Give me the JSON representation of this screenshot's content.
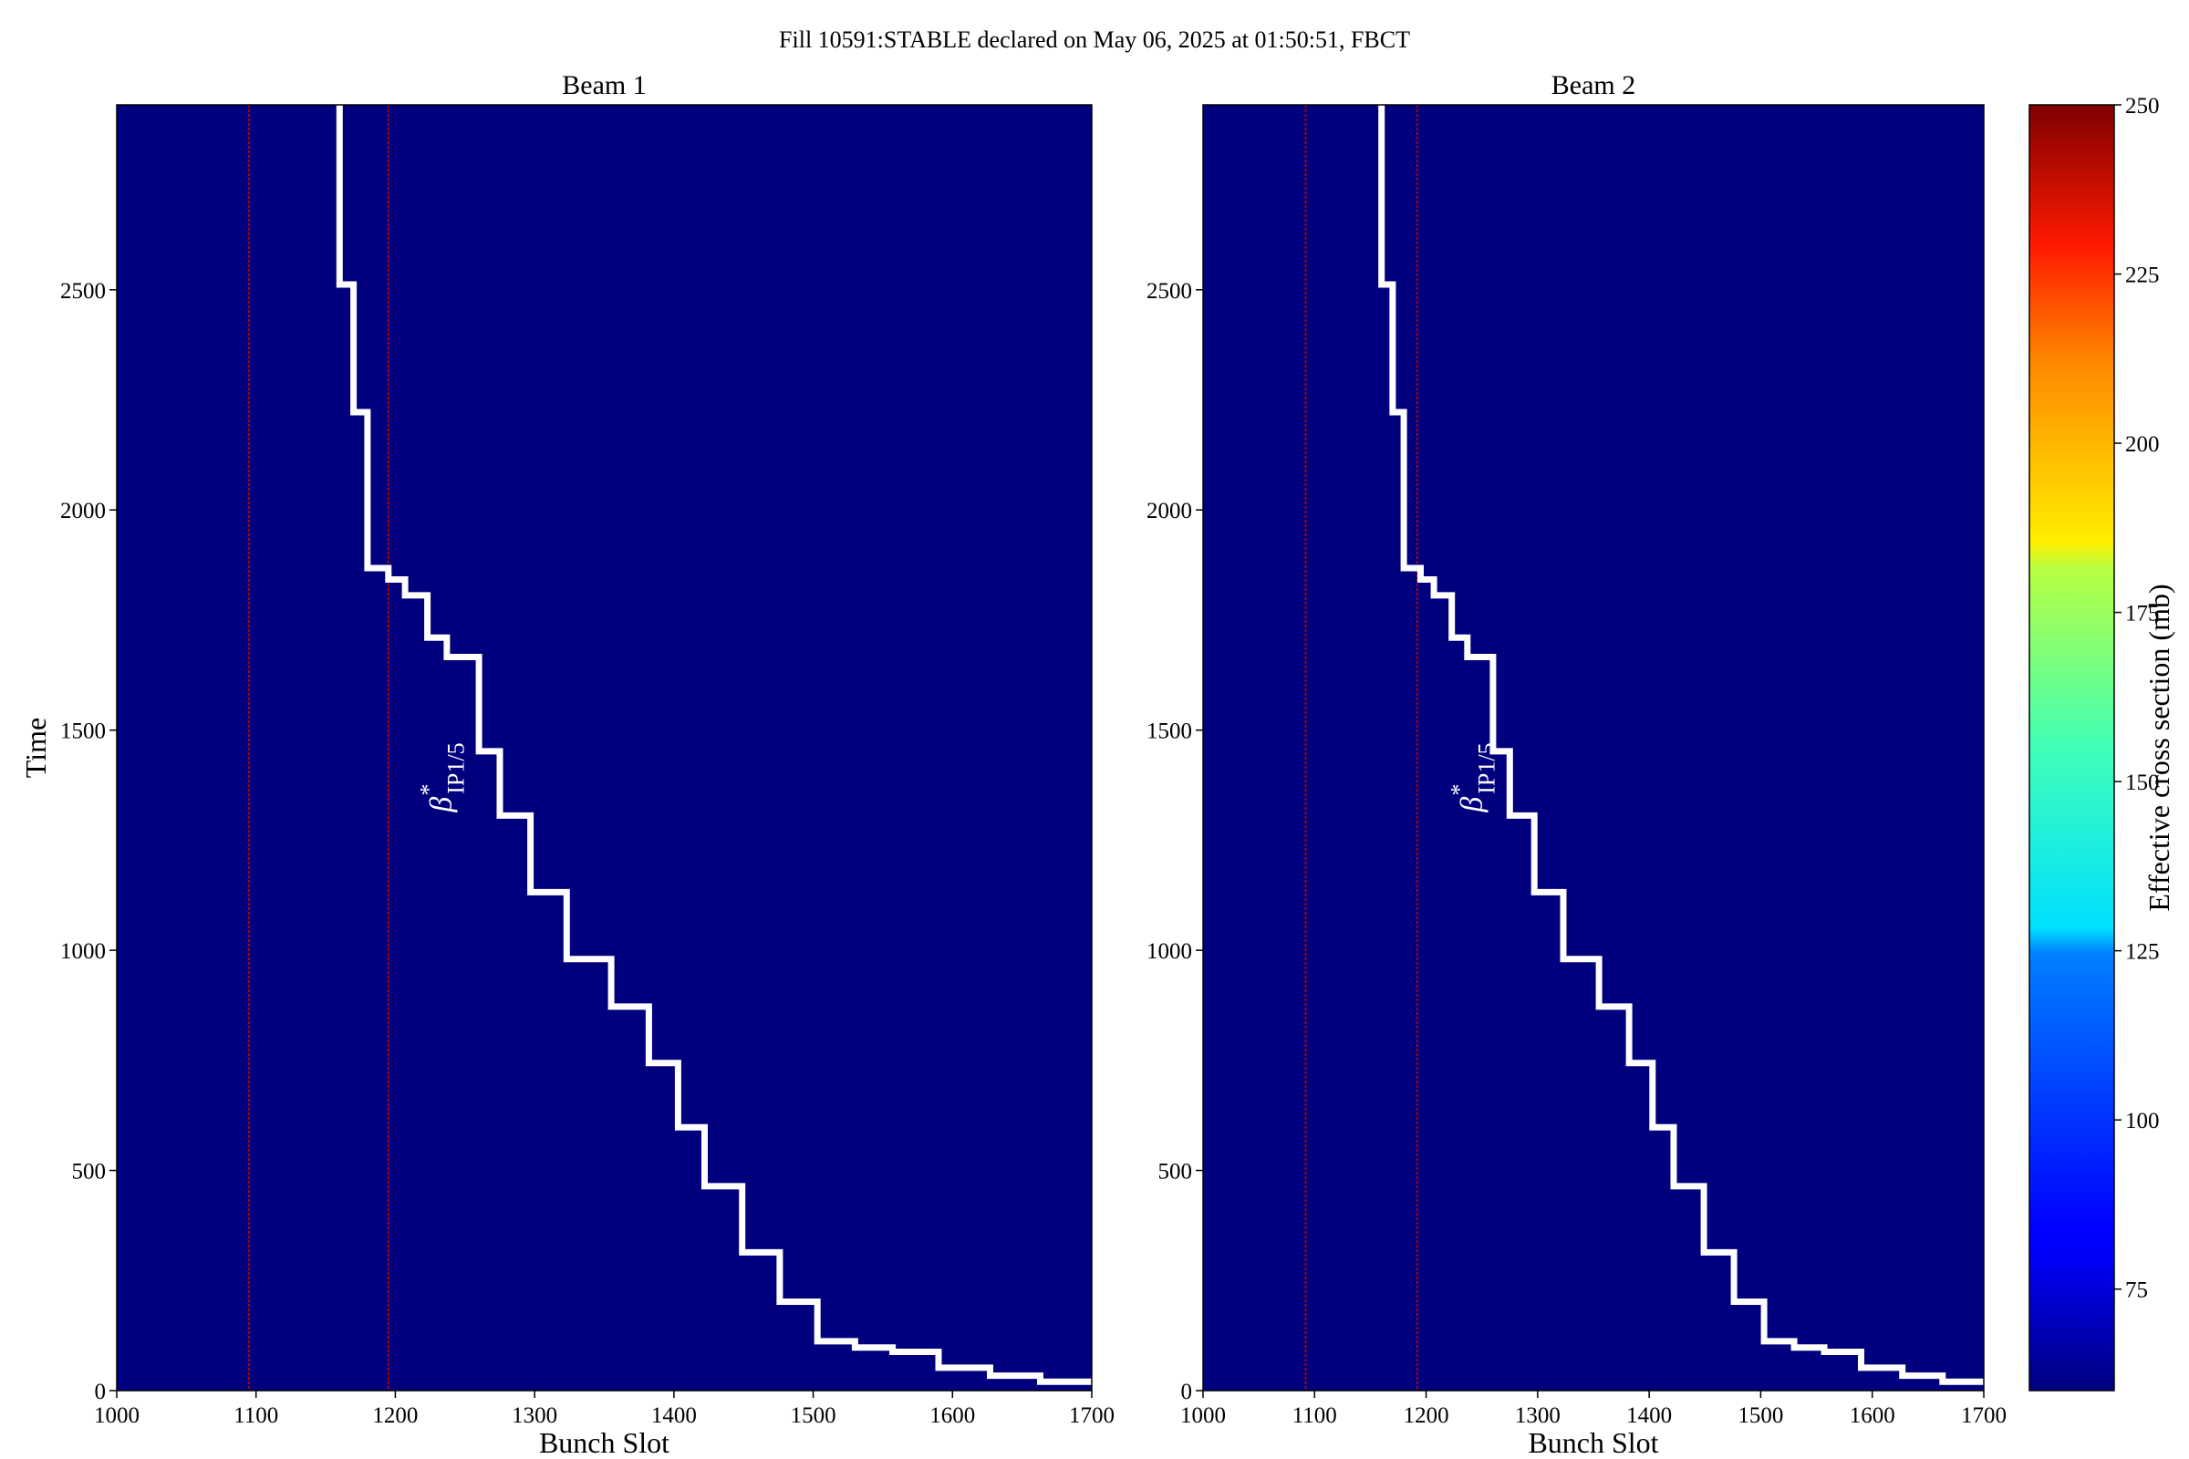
{
  "chart_data": {
    "suptitle": "Fill 10591:STABLE declared on May 06, 2025 at 01:50:51, FBCT",
    "colorbar": {
      "label": "Effective cross section (mb)",
      "min": 60,
      "max": 250,
      "ticks": [
        "75",
        "100",
        "125",
        "150",
        "175",
        "200",
        "225",
        "250"
      ],
      "tick_values": [
        75,
        100,
        125,
        150,
        175,
        200,
        225,
        250
      ],
      "colormap": "jet"
    },
    "panels": [
      {
        "type": "heatmap",
        "title": "Beam 1",
        "xlabel": "Bunch Slot",
        "ylabel": "Time",
        "xlim": [
          1000,
          1700
        ],
        "ylim": [
          0,
          2920
        ],
        "xticks": [
          "1000",
          "1100",
          "1200",
          "1300",
          "1400",
          "1500",
          "1600",
          "1700"
        ],
        "xtick_values": [
          1000,
          1100,
          1200,
          1300,
          1400,
          1500,
          1600,
          1700
        ],
        "yticks": [
          "0",
          "500",
          "1000",
          "1500",
          "2000",
          "2500"
        ],
        "ytick_values": [
          0,
          500,
          1000,
          1500,
          2000,
          2500
        ],
        "background_color": "#00007f",
        "red_slots": [
          1095,
          1195
        ],
        "annotation": "β*IP1/5",
        "annotation_main": "β",
        "annotation_sup": "*",
        "annotation_sub": "IP1/5",
        "annotation_at": [
          1240,
          1500
        ],
        "beta_star_steps": [
          [
            1700,
            20
          ],
          [
            1663,
            20
          ],
          [
            1663,
            34
          ],
          [
            1627,
            34
          ],
          [
            1627,
            52
          ],
          [
            1590,
            52
          ],
          [
            1590,
            88
          ],
          [
            1557,
            88
          ],
          [
            1557,
            98
          ],
          [
            1530,
            98
          ],
          [
            1530,
            112
          ],
          [
            1503,
            112
          ],
          [
            1503,
            202
          ],
          [
            1476,
            202
          ],
          [
            1476,
            314
          ],
          [
            1449,
            314
          ],
          [
            1449,
            464
          ],
          [
            1422,
            464
          ],
          [
            1422,
            598
          ],
          [
            1403,
            598
          ],
          [
            1403,
            744
          ],
          [
            1382,
            744
          ],
          [
            1382,
            872
          ],
          [
            1355,
            872
          ],
          [
            1355,
            980
          ],
          [
            1323,
            980
          ],
          [
            1323,
            1132
          ],
          [
            1297,
            1132
          ],
          [
            1297,
            1306
          ],
          [
            1275,
            1306
          ],
          [
            1275,
            1452
          ],
          [
            1260,
            1452
          ],
          [
            1260,
            1666
          ],
          [
            1237,
            1666
          ],
          [
            1237,
            1710
          ],
          [
            1223,
            1710
          ],
          [
            1223,
            1806
          ],
          [
            1207,
            1806
          ],
          [
            1207,
            1842
          ],
          [
            1195,
            1842
          ],
          [
            1195,
            1868
          ],
          [
            1180,
            1868
          ],
          [
            1180,
            2222
          ],
          [
            1170,
            2222
          ],
          [
            1170,
            2512
          ],
          [
            1160,
            2512
          ],
          [
            1160,
            2920
          ]
        ]
      },
      {
        "type": "heatmap",
        "title": "Beam 2",
        "xlabel": "Bunch Slot",
        "ylabel": "",
        "xlim": [
          1000,
          1700
        ],
        "ylim": [
          0,
          2920
        ],
        "xticks": [
          "1000",
          "1100",
          "1200",
          "1300",
          "1400",
          "1500",
          "1600",
          "1700"
        ],
        "xtick_values": [
          1000,
          1100,
          1200,
          1300,
          1400,
          1500,
          1600,
          1700
        ],
        "yticks": [
          "0",
          "500",
          "1000",
          "1500",
          "2000",
          "2500"
        ],
        "ytick_values": [
          0,
          500,
          1000,
          1500,
          2000,
          2500
        ],
        "background_color": "#00007f",
        "red_slots": [
          1092,
          1192
        ],
        "annotation": "β*IP1/5",
        "annotation_main": "β",
        "annotation_sup": "*",
        "annotation_sub": "IP1/5",
        "annotation_at": [
          1250,
          1500
        ],
        "beta_star_steps": [
          [
            1700,
            20
          ],
          [
            1663,
            20
          ],
          [
            1663,
            34
          ],
          [
            1627,
            34
          ],
          [
            1627,
            52
          ],
          [
            1590,
            52
          ],
          [
            1590,
            88
          ],
          [
            1557,
            88
          ],
          [
            1557,
            98
          ],
          [
            1530,
            98
          ],
          [
            1530,
            112
          ],
          [
            1503,
            112
          ],
          [
            1503,
            202
          ],
          [
            1476,
            202
          ],
          [
            1476,
            314
          ],
          [
            1449,
            314
          ],
          [
            1449,
            464
          ],
          [
            1422,
            464
          ],
          [
            1422,
            598
          ],
          [
            1403,
            598
          ],
          [
            1403,
            744
          ],
          [
            1382,
            744
          ],
          [
            1382,
            872
          ],
          [
            1355,
            872
          ],
          [
            1355,
            980
          ],
          [
            1323,
            980
          ],
          [
            1323,
            1132
          ],
          [
            1297,
            1132
          ],
          [
            1297,
            1306
          ],
          [
            1275,
            1306
          ],
          [
            1275,
            1452
          ],
          [
            1260,
            1452
          ],
          [
            1260,
            1666
          ],
          [
            1237,
            1666
          ],
          [
            1237,
            1710
          ],
          [
            1223,
            1710
          ],
          [
            1223,
            1806
          ],
          [
            1207,
            1806
          ],
          [
            1207,
            1842
          ],
          [
            1195,
            1842
          ],
          [
            1195,
            1868
          ],
          [
            1180,
            1868
          ],
          [
            1180,
            2222
          ],
          [
            1170,
            2222
          ],
          [
            1170,
            2512
          ],
          [
            1160,
            2512
          ],
          [
            1160,
            2920
          ]
        ]
      }
    ]
  }
}
